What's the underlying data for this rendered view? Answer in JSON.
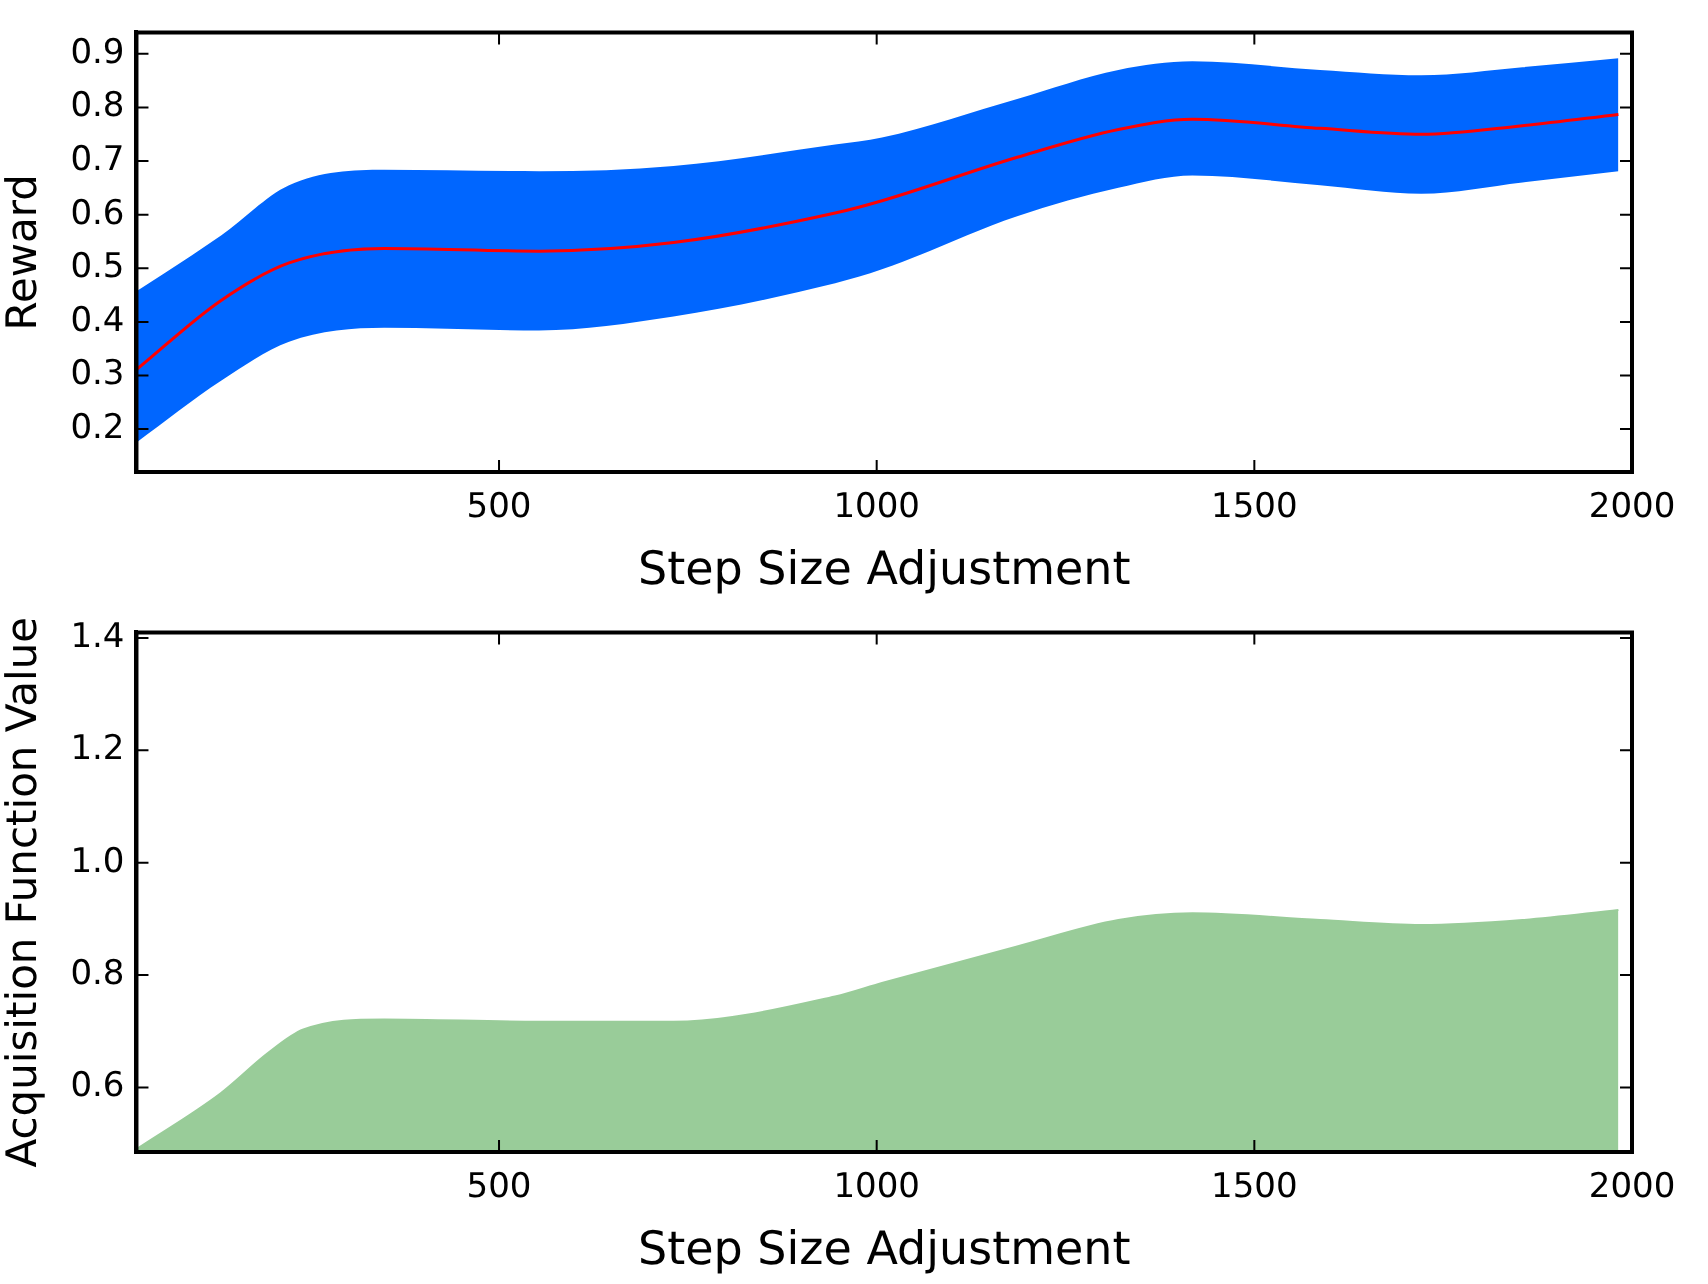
{
  "chart_data": [
    {
      "type": "line",
      "xlabel": "Step Size Adjustment",
      "ylabel": "Reward",
      "xlim": [
        20,
        2000
      ],
      "xticks": [
        500,
        1000,
        1500,
        2000
      ],
      "ylim": [
        0.12,
        0.94
      ],
      "yticks": [
        0.2,
        0.3,
        0.4,
        0.5,
        0.6,
        0.7,
        0.8,
        0.9
      ],
      "grid": false,
      "legend": false,
      "x": [
        20,
        132,
        222,
        348,
        553,
        731,
        945,
        1007,
        1186,
        1320,
        1418,
        1587,
        1721,
        1855,
        1982
      ],
      "series": [
        {
          "color": "#ff0000",
          "values": [
            0.311,
            0.44,
            0.51,
            0.537,
            0.532,
            0.548,
            0.603,
            0.626,
            0.707,
            0.759,
            0.778,
            0.761,
            0.75,
            0.766,
            0.787
          ],
          "lower": [
            0.175,
            0.29,
            0.363,
            0.389,
            0.384,
            0.41,
            0.472,
            0.498,
            0.597,
            0.65,
            0.673,
            0.655,
            0.639,
            0.66,
            0.681
          ],
          "upper": [
            0.457,
            0.561,
            0.655,
            0.684,
            0.681,
            0.691,
            0.731,
            0.744,
            0.816,
            0.87,
            0.886,
            0.87,
            0.86,
            0.875,
            0.892
          ]
        }
      ]
    },
    {
      "type": "area",
      "xlabel": "Step Size Adjustment",
      "ylabel": "Acquisition Function Value",
      "xlim": [
        20,
        2000
      ],
      "xticks": [
        500,
        1000,
        1500,
        2000
      ],
      "ylim": [
        0.485,
        1.41
      ],
      "yticks": [
        {
          "value": 0.6,
          "label": "0.6"
        },
        {
          "value": 0.8,
          "label": "0.8"
        },
        {
          "value": 1.0,
          "label": "1.0"
        },
        {
          "value": 1.2,
          "label": "1.2"
        },
        {
          "value": 1.4,
          "label": "1.4"
        }
      ],
      "grid": false,
      "legend": false,
      "x": [
        20,
        132,
        194,
        241,
        348,
        553,
        731,
        945,
        1007,
        1186,
        1320,
        1418,
        1587,
        1721,
        1855,
        1982
      ],
      "series": [
        {
          "color": "#99cc99",
          "values": [
            0.49,
            0.59,
            0.661,
            0.703,
            0.721,
            0.717,
            0.717,
            0.762,
            0.786,
            0.851,
            0.898,
            0.91,
            0.898,
            0.889,
            0.898,
            0.916
          ]
        }
      ]
    }
  ]
}
